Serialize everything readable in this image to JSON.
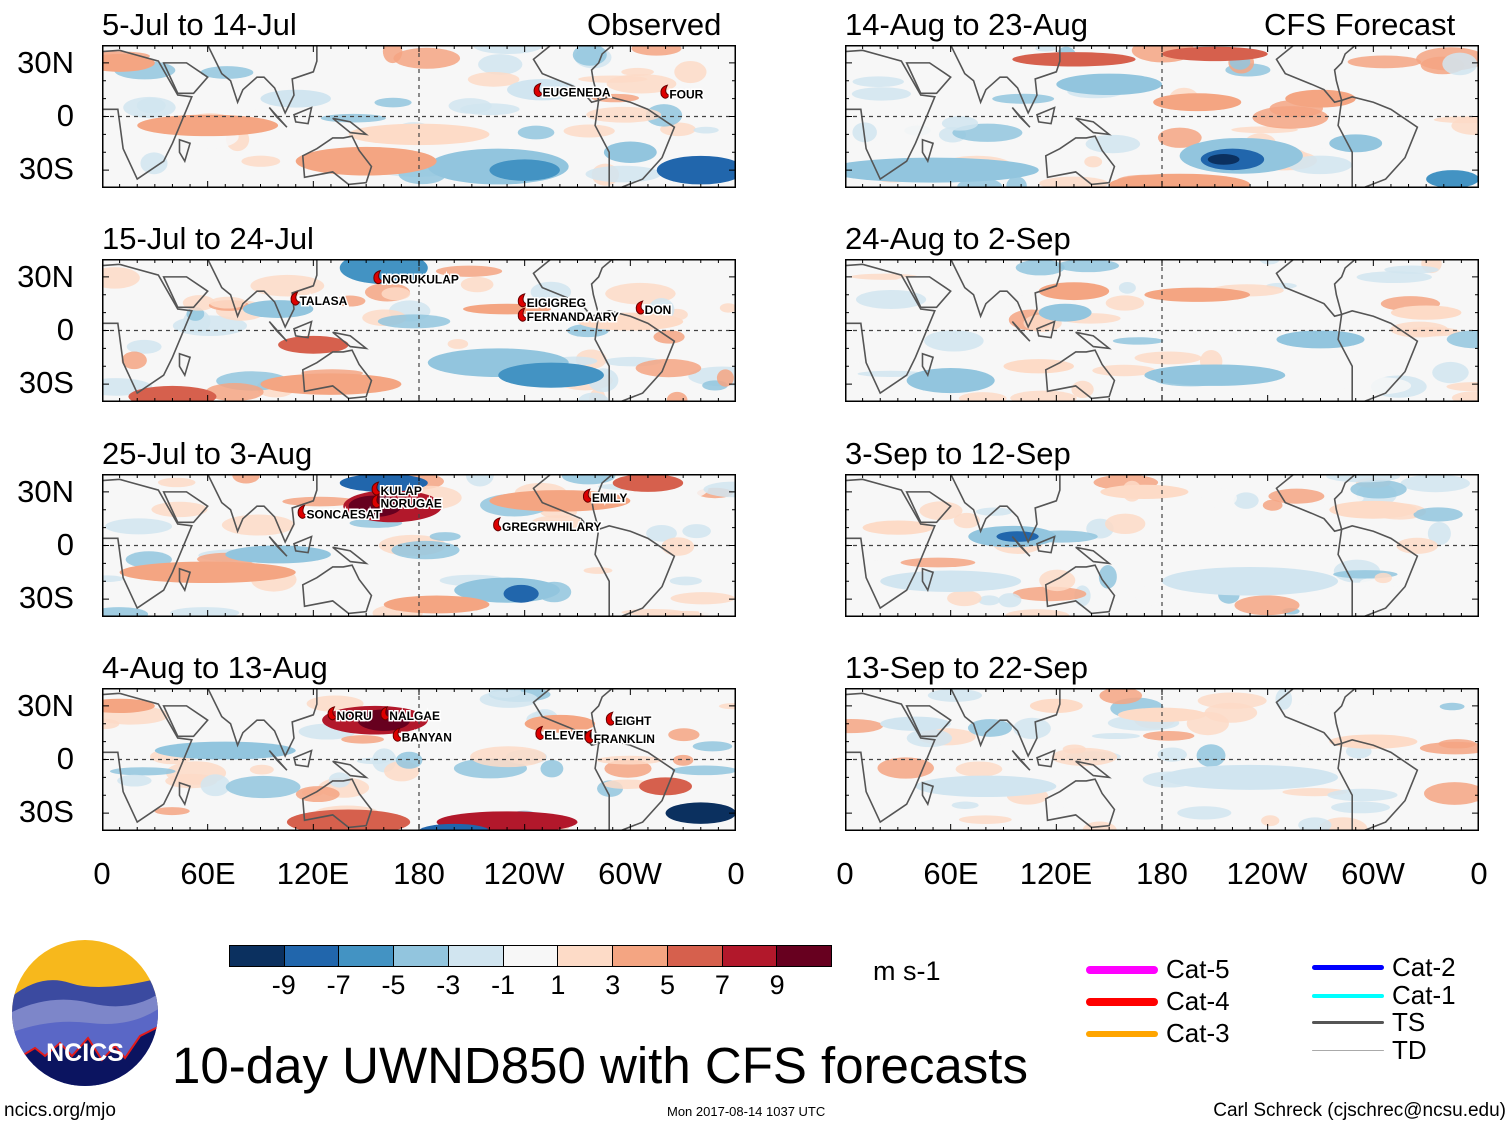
{
  "title": "10-day UWND850 with CFS forecasts",
  "columns": {
    "observed": "Observed",
    "forecast": "CFS Forecast"
  },
  "lat_labels": [
    "30N",
    "0",
    "30S"
  ],
  "lon_labels": [
    "0",
    "60E",
    "120E",
    "180",
    "120W",
    "60W",
    "0"
  ],
  "panels": [
    {
      "label": "5-Jul to 14-Jul",
      "type": "observed",
      "storms": [
        {
          "name": "EUGENEDA",
          "lon": 249,
          "lat": 14
        },
        {
          "name": "FOUR",
          "lon": 321,
          "lat": 13
        }
      ]
    },
    {
      "label": "15-Jul to 24-Jul",
      "type": "observed",
      "storms": [
        {
          "name": "TALASA",
          "lon": 111,
          "lat": 17
        },
        {
          "name": "NORUKULAP",
          "lon": 158,
          "lat": 29
        },
        {
          "name": "EIGIGREG",
          "lon": 240,
          "lat": 16
        },
        {
          "name": "FERNANDAARY",
          "lon": 240,
          "lat": 8
        },
        {
          "name": "DON",
          "lon": 307,
          "lat": 12
        }
      ]
    },
    {
      "label": "25-Jul to 3-Aug",
      "type": "observed",
      "storms": [
        {
          "name": "SONCAESAT",
          "lon": 115,
          "lat": 18
        },
        {
          "name": "KULAP",
          "lon": 157,
          "lat": 31
        },
        {
          "name": "NORUGAE",
          "lon": 157,
          "lat": 24
        },
        {
          "name": "GREGRWHILARY",
          "lon": 226,
          "lat": 11
        },
        {
          "name": "EMILY",
          "lon": 277,
          "lat": 27
        }
      ]
    },
    {
      "label": "4-Aug to 13-Aug",
      "type": "observed",
      "storms": [
        {
          "name": "NORU",
          "lon": 132,
          "lat": 25
        },
        {
          "name": "NALGAE",
          "lon": 162,
          "lat": 25
        },
        {
          "name": "BANYAN",
          "lon": 169,
          "lat": 13
        },
        {
          "name": "ELEVEN",
          "lon": 250,
          "lat": 14
        },
        {
          "name": "EIGHT",
          "lon": 290,
          "lat": 22
        },
        {
          "name": "FRANKLIN",
          "lon": 278,
          "lat": 12
        }
      ]
    },
    {
      "label": "14-Aug to 23-Aug",
      "type": "forecast",
      "storms": []
    },
    {
      "label": "24-Aug to 2-Sep",
      "type": "forecast",
      "storms": []
    },
    {
      "label": "3-Sep to 12-Sep",
      "type": "forecast",
      "storms": []
    },
    {
      "label": "13-Sep to 22-Sep",
      "type": "forecast",
      "storms": []
    }
  ],
  "colorbar": {
    "units": "m s-1",
    "labels": [
      "-9",
      "-7",
      "-5",
      "-3",
      "-1",
      "1",
      "3",
      "5",
      "7",
      "9"
    ],
    "colors": [
      "#0b305f",
      "#2166ac",
      "#4393c3",
      "#92c5de",
      "#d1e5f0",
      "#f7f7f7",
      "#fddbc7",
      "#f4a582",
      "#d6604d",
      "#b2182b",
      "#67001f"
    ]
  },
  "legend": [
    {
      "label": "Cat-5",
      "color": "#ff00ff"
    },
    {
      "label": "Cat-4",
      "color": "#ff0000"
    },
    {
      "label": "Cat-3",
      "color": "#ffa500"
    },
    {
      "label": "Cat-2",
      "color": "#0000ff"
    },
    {
      "label": "Cat-1",
      "color": "#00ffff"
    },
    {
      "label": "TS",
      "color": "#555555"
    },
    {
      "label": "TD",
      "color": "#aaaaaa"
    }
  ],
  "footer": {
    "website": "ncics.org/mjo",
    "timestamp": "Mon 2017-08-14 1037 UTC",
    "author": "Carl Schreck (cjschrec@ncsu.edu)",
    "logo_text": "NCICS"
  }
}
